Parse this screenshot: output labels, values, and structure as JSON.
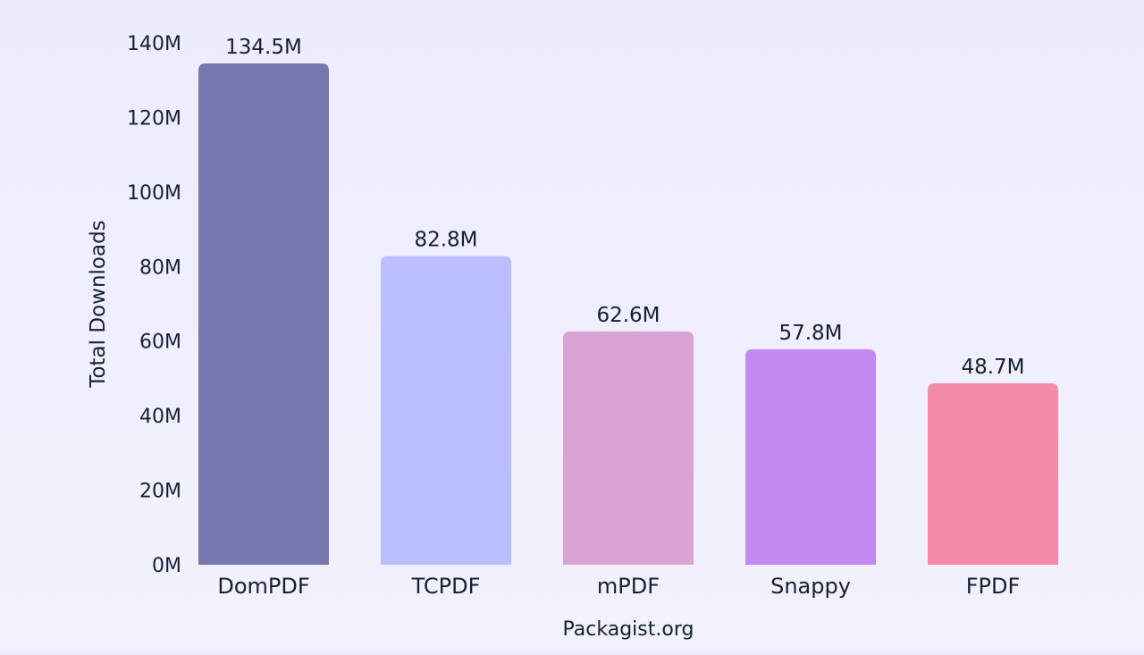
{
  "chart_data": {
    "type": "bar",
    "categories": [
      "DomPDF",
      "TCPDF",
      "mPDF",
      "Snappy",
      "FPDF"
    ],
    "values": [
      134.5,
      82.8,
      62.6,
      57.8,
      48.7
    ],
    "value_labels": [
      "134.5M",
      "82.8M",
      "62.6M",
      "57.8M",
      "48.7M"
    ],
    "colors": [
      "#7577ad",
      "#bbbefd",
      "#d9a3d4",
      "#c189f1",
      "#f38aaa"
    ],
    "title": "",
    "xlabel": "Packagist.org",
    "ylabel": "Total Downloads",
    "ylim": [
      0,
      140
    ],
    "yticks": [
      0,
      20,
      40,
      60,
      80,
      100,
      120,
      140
    ],
    "ytick_labels": [
      "0M",
      "20M",
      "40M",
      "60M",
      "80M",
      "100M",
      "120M",
      "140M"
    ],
    "grid": false,
    "legend": "none"
  }
}
